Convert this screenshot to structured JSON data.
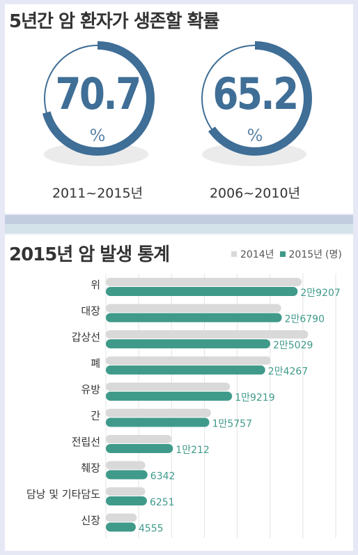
{
  "survival": {
    "title": "5년간 암 환자가 생존할 확률",
    "unit": "%",
    "rings": [
      {
        "value": "70.7",
        "fraction": 0.707,
        "period": "2011~2015년"
      },
      {
        "value": "65.2",
        "fraction": 0.652,
        "period": "2006~2010년"
      }
    ],
    "accent": "#3f6e96",
    "track": "#ffffff"
  },
  "chart_data": {
    "type": "bar",
    "title": "2015년 암 발생 통계",
    "orientation": "horizontal",
    "categories": [
      "위",
      "대장",
      "갑상선",
      "폐",
      "유방",
      "간",
      "전립선",
      "췌장",
      "담낭 및 기타담도",
      "신장"
    ],
    "series": [
      {
        "name": "2014년",
        "color": "#d9d9d9",
        "values": [
          29800,
          26700,
          30800,
          25100,
          18900,
          16000,
          10000,
          6000,
          6000,
          4700
        ]
      },
      {
        "name": "2015년",
        "color": "#3f9a8a",
        "values": [
          29207,
          26790,
          25029,
          24267,
          19219,
          15757,
          10212,
          6342,
          6251,
          4555
        ]
      }
    ],
    "data_labels": [
      "2만9207",
      "2만6790",
      "2만5029",
      "2만4267",
      "1만9219",
      "1만5757",
      "1만212",
      "6342",
      "6251",
      "4555"
    ],
    "legend_suffix": "(명)",
    "legend_position": "top-right",
    "xlim": [
      0,
      35000
    ],
    "grid": true
  }
}
